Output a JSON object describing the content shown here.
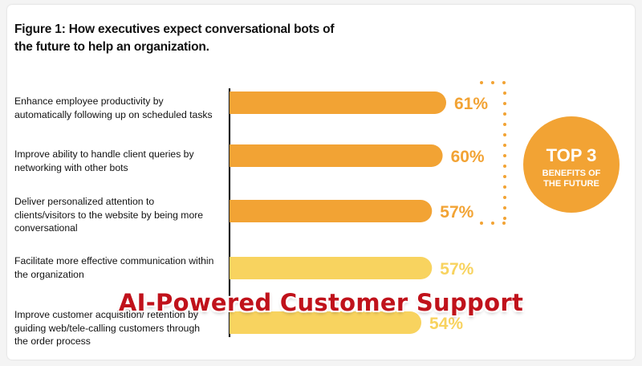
{
  "chart_data": {
    "type": "bar",
    "orientation": "horizontal",
    "title": "Figure 1:  How executives expect conversational bots of the future to help an organization.",
    "categories": [
      "Enhance employee productivity by automatically following up on scheduled tasks",
      "Improve ability to handle client queries by networking with other bots",
      "Deliver personalized attention to clients/visitors to the website by being more conversational",
      "Facilitate more effective communication within the organization",
      "Improve customer acquisition/ retention by guiding web/tele-calling customers through the order process"
    ],
    "values": [
      61,
      60,
      57,
      57,
      54
    ],
    "data_labels": [
      "61%",
      "60%",
      "57%",
      "57%",
      "54%"
    ],
    "bar_colors": [
      "#f2a334",
      "#f2a334",
      "#f2a334",
      "#f8d35f",
      "#f8d35f"
    ],
    "xlim": [
      0,
      61
    ],
    "grid": false,
    "callout": {
      "line1": "TOP 3",
      "line2": "BENEFITS OF",
      "line3": "THE FUTURE",
      "color": "#f2a334"
    }
  },
  "overlay_caption": "AI-Powered Customer Support",
  "colors": {
    "dark_orange": "#f2a334",
    "light_yellow": "#f8d35f",
    "caption_red": "#c0121b"
  }
}
